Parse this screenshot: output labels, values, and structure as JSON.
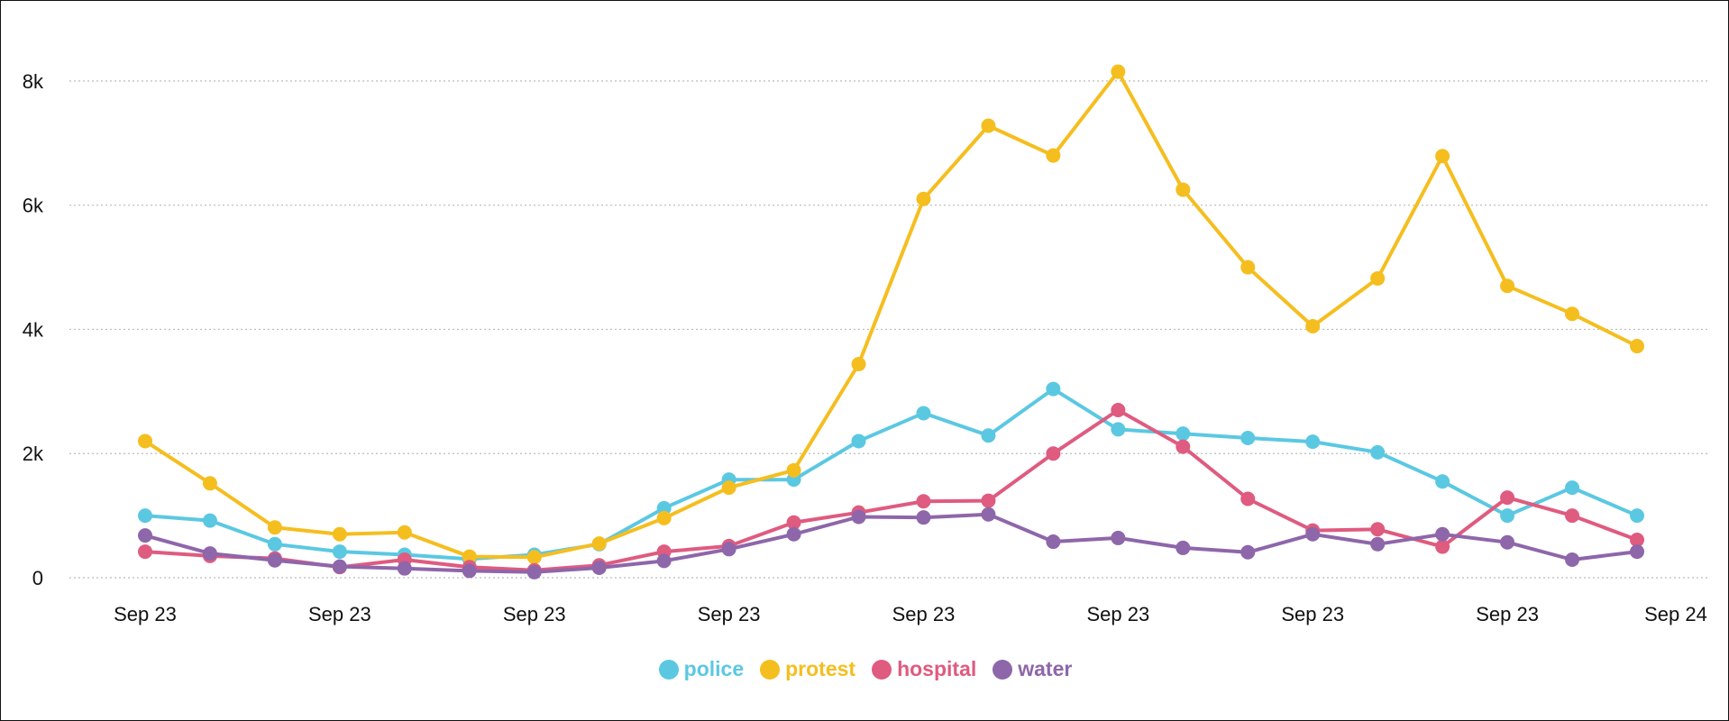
{
  "chart_data": {
    "type": "line",
    "title": "",
    "xlabel": "",
    "ylabel": "",
    "ylim": [
      0,
      9000
    ],
    "y_ticks": [
      {
        "value": 0,
        "label": "0"
      },
      {
        "value": 2000,
        "label": "2k"
      },
      {
        "value": 4000,
        "label": "4k"
      },
      {
        "value": 6000,
        "label": "6k"
      },
      {
        "value": 8000,
        "label": "8k"
      }
    ],
    "x_tick_labels": [
      "Sep 23",
      "Sep 23",
      "Sep 23",
      "Sep 23",
      "Sep 23",
      "Sep 23",
      "Sep 23",
      "Sep 23",
      "Sep 24"
    ],
    "x_tick_points": [
      0,
      3,
      6,
      9,
      12,
      15,
      18,
      21,
      24
    ],
    "grid": "horizontal dotted",
    "legend_position": "bottom",
    "point_count": 24,
    "series": [
      {
        "name": "police",
        "color": "#5bc8e2",
        "values": [
          1000,
          920,
          540,
          420,
          370,
          300,
          370,
          540,
          1120,
          1580,
          1580,
          2200,
          2650,
          2290,
          3040,
          2390,
          2320,
          2250,
          2190,
          2020,
          1550,
          1000,
          1450,
          1000
        ]
      },
      {
        "name": "protest",
        "color": "#f5be1f",
        "values": [
          2200,
          1520,
          810,
          700,
          730,
          340,
          330,
          550,
          960,
          1450,
          1730,
          3440,
          6100,
          7280,
          6800,
          8150,
          6250,
          5000,
          4050,
          4820,
          6790,
          4700,
          4250,
          3730
        ]
      },
      {
        "name": "hospital",
        "color": "#df5b80",
        "values": [
          420,
          350,
          310,
          170,
          290,
          170,
          120,
          200,
          420,
          510,
          890,
          1050,
          1230,
          1240,
          2000,
          2700,
          2110,
          1270,
          760,
          780,
          500,
          1290,
          1000,
          610
        ]
      },
      {
        "name": "water",
        "color": "#8e66aa",
        "values": [
          680,
          390,
          280,
          180,
          150,
          110,
          90,
          160,
          270,
          460,
          700,
          980,
          970,
          1020,
          580,
          640,
          480,
          410,
          700,
          540,
          700,
          570,
          290,
          420
        ]
      }
    ]
  }
}
